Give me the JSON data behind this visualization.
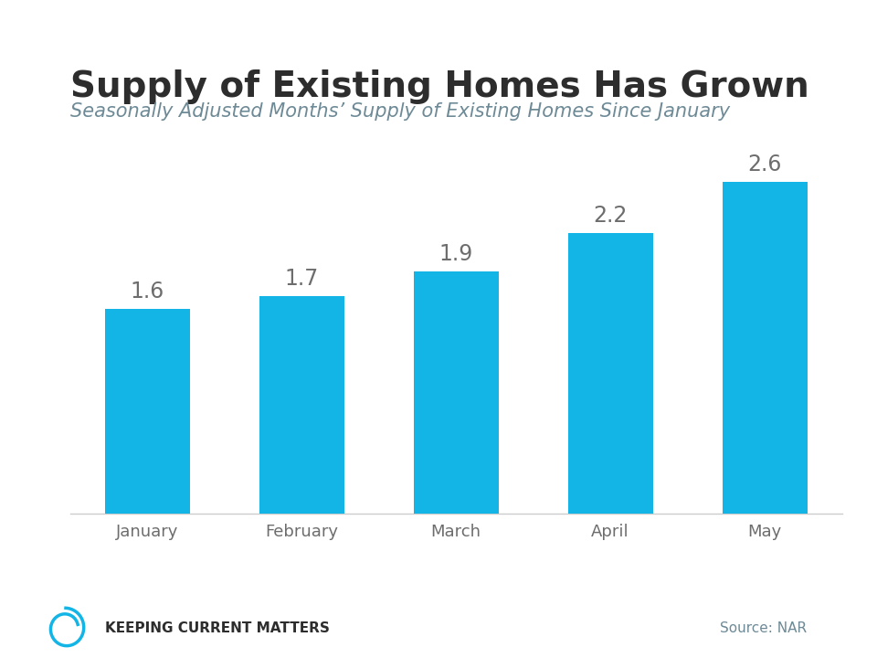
{
  "title": "Supply of Existing Homes Has Grown",
  "subtitle": "Seasonally Adjusted Months’ Supply of Existing Homes Since January",
  "categories": [
    "January",
    "February",
    "March",
    "April",
    "May"
  ],
  "values": [
    1.6,
    1.7,
    1.9,
    2.2,
    2.6
  ],
  "bar_color": "#12B5E5",
  "title_color": "#2d2d2d",
  "subtitle_color": "#6d8a96",
  "label_color": "#6d6d6d",
  "value_label_color": "#6d6d6d",
  "source_text": "Source: NAR",
  "brand_text": "Keeping Current Matters",
  "top_bar_color": "#12B5E5",
  "background_color": "#ffffff",
  "ylim": [
    0,
    3.2
  ],
  "title_fontsize": 28,
  "subtitle_fontsize": 15,
  "tick_fontsize": 13,
  "value_fontsize": 17,
  "source_fontsize": 11,
  "brand_fontsize": 11
}
